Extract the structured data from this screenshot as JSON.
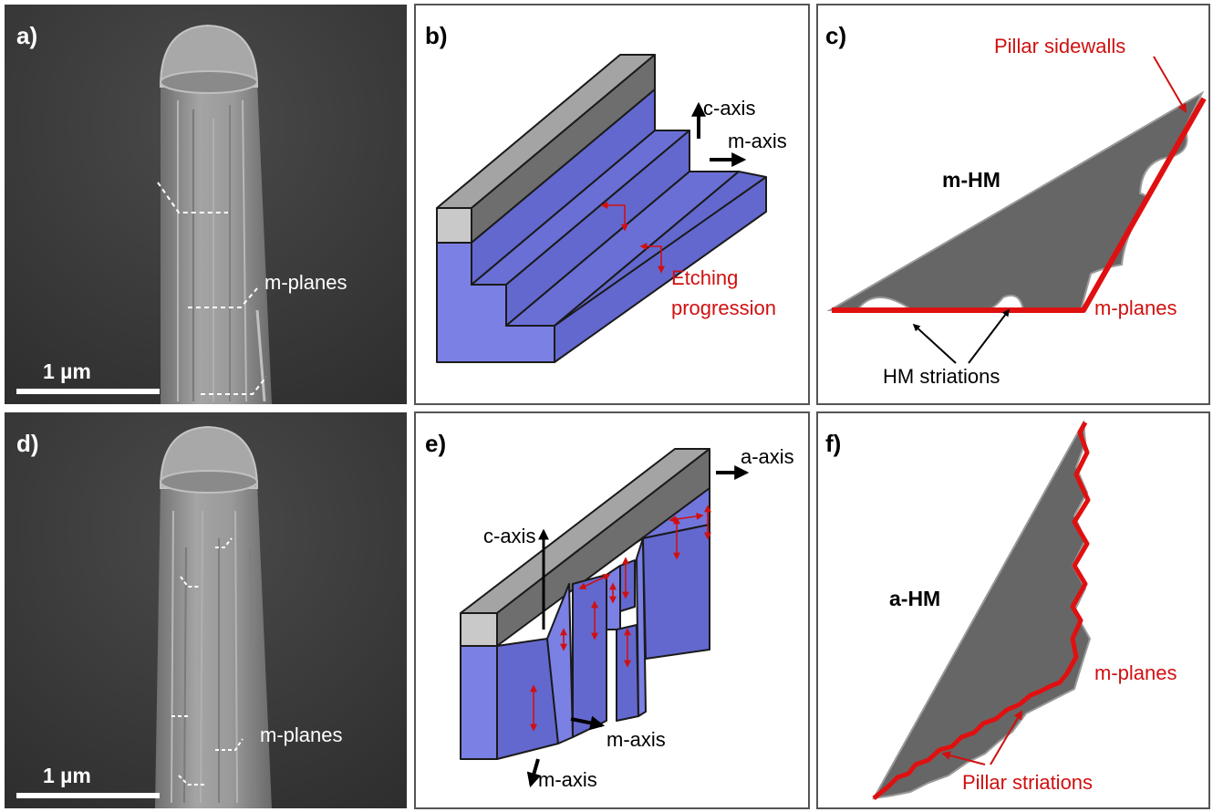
{
  "panels": {
    "a": {
      "label": "a)",
      "annotation": "m-planes",
      "scalebar": "1 µm"
    },
    "b": {
      "label": "b)",
      "c_axis": "c-axis",
      "m_axis": "m-axis",
      "etch_line1": "Etching",
      "etch_line2": "progression"
    },
    "c": {
      "label": "c)",
      "sidewalls": "Pillar sidewalls",
      "mask": "m-HM",
      "mplanes": "m-planes",
      "striations": "HM striations"
    },
    "d": {
      "label": "d)",
      "annotation": "m-planes",
      "scalebar": "1 µm"
    },
    "e": {
      "label": "e)",
      "a_axis": "a-axis",
      "c_axis": "c-axis",
      "m_axis1": "m-axis",
      "m_axis2": "m-axis"
    },
    "f": {
      "label": "f)",
      "mask": "a-HM",
      "mplanes": "m-planes",
      "striations": "Pillar striations"
    }
  },
  "colors": {
    "sem_bg": "#3a3a3a",
    "pillar": "#8e8e8e",
    "hm_gray": "#6e6e6e",
    "hm_light": "#c8c8c8",
    "blue_face": "#7b80e4",
    "blue_top": "#6a6fd4",
    "red": "#e01010",
    "mask_fill": "#666666"
  }
}
